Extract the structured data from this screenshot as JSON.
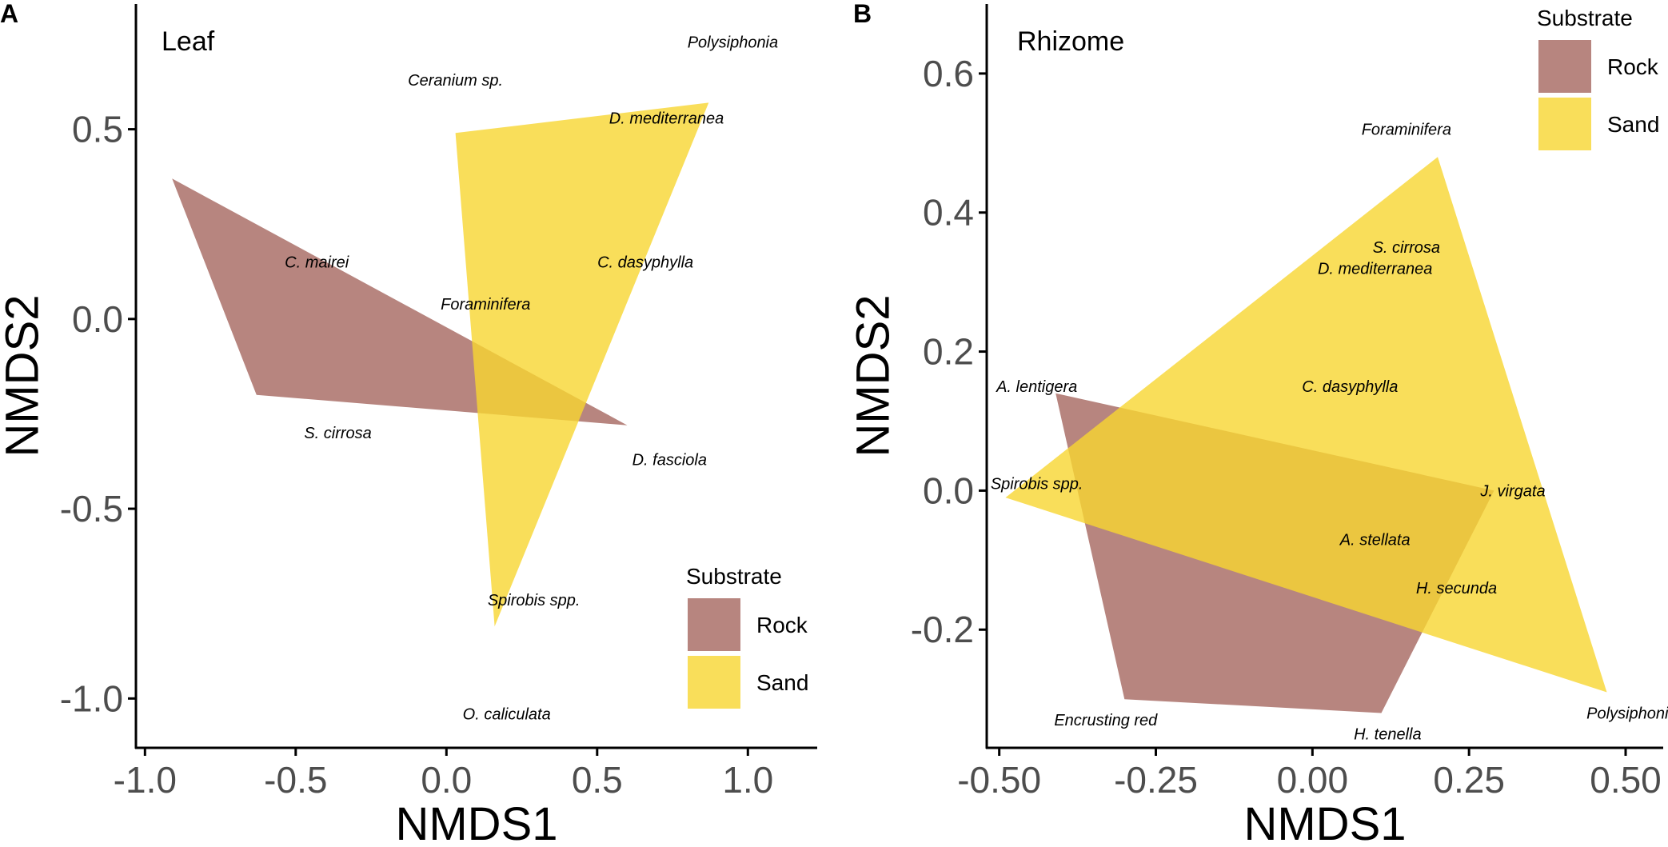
{
  "chart_data": [
    {
      "type": "scatter",
      "panel_letter": "A",
      "title": "Leaf",
      "xlabel": "NMDS1",
      "ylabel": "NMDS2",
      "xlim": [
        -1.03,
        1.23
      ],
      "ylim": [
        -1.13,
        0.83
      ],
      "xticks": [
        -1.0,
        -0.5,
        0.0,
        0.5,
        1.0
      ],
      "xtick_labels": [
        "-1.0",
        "-0.5",
        "0.0",
        "0.5",
        "1.0"
      ],
      "yticks": [
        -1.0,
        -0.5,
        0.0,
        0.5
      ],
      "ytick_labels": [
        "-1.0",
        "-0.5",
        "0.0",
        "0.5"
      ],
      "legend": {
        "title": "Substrate",
        "position": "bottom-right"
      },
      "series": [
        {
          "name": "Rock",
          "color": "#a5675f",
          "polygon": [
            [
              -0.91,
              0.37
            ],
            [
              -0.63,
              -0.2
            ],
            [
              0.6,
              -0.28
            ]
          ]
        },
        {
          "name": "Sand",
          "color": "#f7d631",
          "polygon": [
            [
              0.03,
              0.49
            ],
            [
              0.87,
              0.57
            ],
            [
              0.16,
              -0.81
            ]
          ]
        }
      ],
      "species": [
        {
          "label": "Polysiphonia",
          "x": 0.95,
          "y": 0.73
        },
        {
          "label": "Ceranium sp.",
          "x": 0.03,
          "y": 0.63
        },
        {
          "label": "D. mediterranea",
          "x": 0.73,
          "y": 0.53
        },
        {
          "label": "C. mairei",
          "x": -0.43,
          "y": 0.15
        },
        {
          "label": "C. dasyphylla",
          "x": 0.66,
          "y": 0.15
        },
        {
          "label": "Foraminifera",
          "x": 0.13,
          "y": 0.04
        },
        {
          "label": "S. cirrosa",
          "x": -0.36,
          "y": -0.3
        },
        {
          "label": "D. fasciola",
          "x": 0.74,
          "y": -0.37
        },
        {
          "label": "Spirobis spp.",
          "x": 0.29,
          "y": -0.74
        },
        {
          "label": "O. caliculata",
          "x": 0.2,
          "y": -1.04
        }
      ]
    },
    {
      "type": "scatter",
      "panel_letter": "B",
      "title": "Rhizome",
      "xlabel": "NMDS1",
      "ylabel": "NMDS2",
      "xlim": [
        -0.52,
        0.56
      ],
      "ylim": [
        -0.37,
        0.7
      ],
      "xticks": [
        -0.5,
        -0.25,
        0.0,
        0.25,
        0.5
      ],
      "xtick_labels": [
        "-0.50",
        "-0.25",
        "0.00",
        "0.25",
        "0.50"
      ],
      "yticks": [
        -0.2,
        0.0,
        0.2,
        0.4,
        0.6
      ],
      "ytick_labels": [
        "-0.2",
        "0.0",
        "0.2",
        "0.4",
        "0.6"
      ],
      "legend": {
        "title": "Substrate",
        "position": "top-right"
      },
      "series": [
        {
          "name": "Rock",
          "color": "#a5675f",
          "polygon": [
            [
              -0.41,
              0.14
            ],
            [
              0.29,
              0.0
            ],
            [
              0.11,
              -0.32
            ],
            [
              -0.3,
              -0.3
            ]
          ]
        },
        {
          "name": "Sand",
          "color": "#f7d631",
          "polygon": [
            [
              -0.49,
              -0.01
            ],
            [
              0.2,
              0.48
            ],
            [
              0.47,
              -0.29
            ]
          ]
        }
      ],
      "species": [
        {
          "label": "Foraminifera",
          "x": 0.15,
          "y": 0.52
        },
        {
          "label": "S. cirrosa",
          "x": 0.15,
          "y": 0.35
        },
        {
          "label": "D. mediterranea",
          "x": 0.1,
          "y": 0.32
        },
        {
          "label": "A. lentigera",
          "x": -0.44,
          "y": 0.15
        },
        {
          "label": "C. dasyphylla",
          "x": 0.06,
          "y": 0.15
        },
        {
          "label": "Spirobis spp.",
          "x": -0.44,
          "y": 0.01
        },
        {
          "label": "J. virgata",
          "x": 0.32,
          "y": 0.0
        },
        {
          "label": "A. stellata",
          "x": 0.1,
          "y": -0.07
        },
        {
          "label": "H. secunda",
          "x": 0.23,
          "y": -0.14
        },
        {
          "label": "Encrusting red",
          "x": -0.33,
          "y": -0.33
        },
        {
          "label": "H. tenella",
          "x": 0.12,
          "y": -0.35
        },
        {
          "label": "Polysiphonia",
          "x": 0.51,
          "y": -0.32
        }
      ]
    }
  ]
}
